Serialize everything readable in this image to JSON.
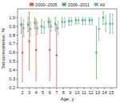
{
  "chart_data": {
    "type": "scatter",
    "xlabel": "Age, y",
    "ylabel": "Seroprevalence, %",
    "x": [
      2,
      3,
      4,
      5,
      6,
      7,
      8,
      9,
      10,
      11,
      12,
      13,
      14,
      15
    ],
    "xlim": [
      1.3,
      15.8
    ],
    "xticks": [
      2,
      3,
      4,
      5,
      6,
      7,
      8,
      9,
      10,
      11,
      12,
      13,
      14,
      15
    ],
    "ylim": [
      0.2,
      1.1
    ],
    "yticks": [
      0.2,
      0.3,
      0.4,
      0.5,
      0.6,
      0.7,
      0.8,
      0.9,
      {
        "value": 1.0,
        "label": "1.0"
      }
    ],
    "legend": "top",
    "marker": "square",
    "series": [
      {
        "name": "2000–2005",
        "color": "#e8534a",
        "values": [
          0.6,
          0.73,
          0.63,
          null,
          0.63,
          0.57,
          null,
          null,
          null,
          null,
          null,
          null,
          null,
          null
        ],
        "err_low": [
          0.27,
          0.4,
          0.28,
          null,
          0.28,
          0.22,
          null,
          null,
          null,
          null,
          null,
          null,
          null,
          null
        ],
        "err_high": [
          0.93,
          1.06,
          0.98,
          null,
          0.98,
          0.92,
          null,
          null,
          null,
          null,
          null,
          null,
          null,
          null
        ]
      },
      {
        "name": "2006–2011",
        "color": "#4caf50",
        "values": [
          0.92,
          0.92,
          0.94,
          0.9,
          0.95,
          0.93,
          0.95,
          0.96,
          0.97,
          0.97,
          0.97,
          0.6,
          1.0,
          0.93
        ],
        "err_low": [
          0.82,
          0.84,
          0.87,
          0.82,
          0.89,
          0.85,
          0.89,
          0.91,
          0.93,
          0.92,
          0.92,
          0.3,
          0.92,
          0.82
        ],
        "err_high": [
          1.0,
          1.0,
          1.0,
          0.98,
          1.0,
          1.0,
          1.0,
          1.0,
          1.0,
          1.0,
          1.0,
          0.9,
          1.07,
          1.04
        ]
      },
      {
        "name": "All",
        "color": "#6baed6",
        "values": [
          0.88,
          0.87,
          0.88,
          0.89,
          0.9,
          0.88,
          0.95,
          0.96,
          0.97,
          0.97,
          0.97,
          0.87,
          0.93,
          0.93
        ],
        "err_low": [
          0.78,
          0.79,
          0.81,
          0.82,
          0.84,
          0.8,
          0.89,
          0.91,
          0.93,
          0.92,
          0.92,
          0.74,
          0.84,
          0.82
        ],
        "err_high": [
          0.98,
          0.95,
          0.95,
          0.96,
          0.96,
          0.96,
          1.0,
          1.0,
          1.0,
          1.0,
          1.0,
          1.0,
          1.02,
          1.04
        ]
      }
    ]
  }
}
